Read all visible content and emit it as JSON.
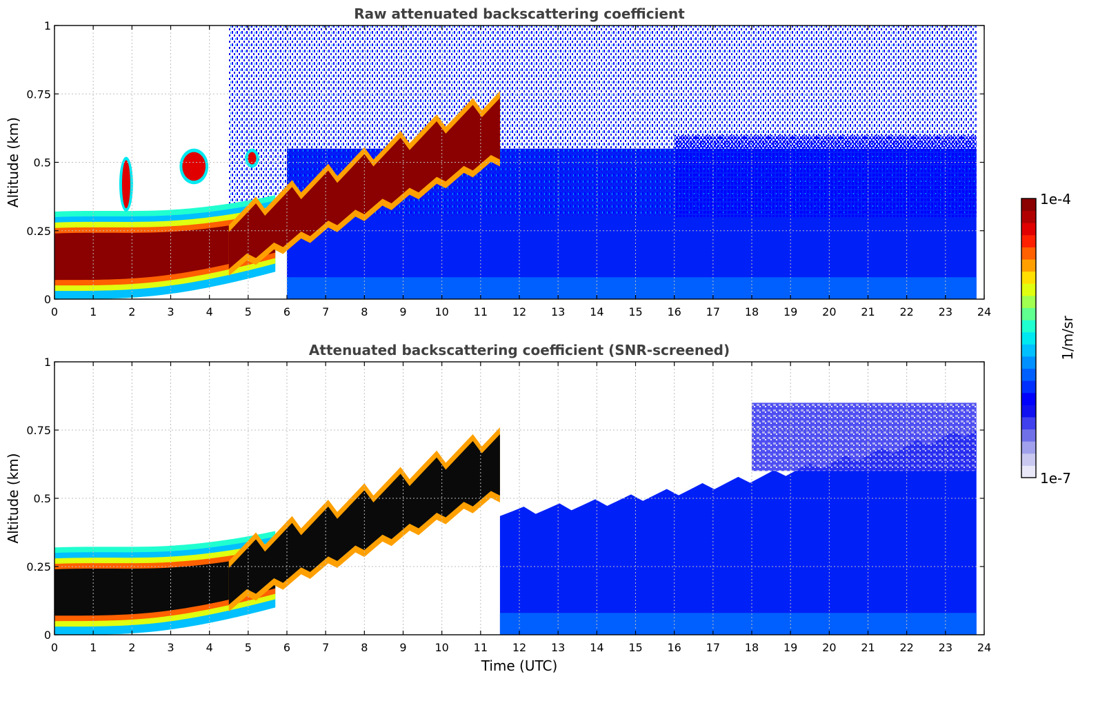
{
  "colorbar": {
    "max_label": "1e-4",
    "min_label": "1e-7",
    "unit_label": "1/m/sr",
    "colors": [
      "#e8e8f8",
      "#c8c8f0",
      "#a0a0ec",
      "#7070e8",
      "#4040ee",
      "#1010f0",
      "#0000ff",
      "#0030ff",
      "#0060ff",
      "#0090ff",
      "#00c0ff",
      "#00e8f0",
      "#20ffd0",
      "#60ff90",
      "#a0ff50",
      "#e0ff10",
      "#ffe000",
      "#ffa000",
      "#ff6000",
      "#ff2000",
      "#e00000",
      "#b00000",
      "#8b0000"
    ]
  },
  "chart_data": [
    {
      "type": "heatmap",
      "title": "Raw attenuated backscattering coefficient",
      "xlabel": "",
      "ylabel": "Altitude (km)",
      "xlim": [
        0,
        24
      ],
      "ylim": [
        0,
        1
      ],
      "x_ticks": [
        "0",
        "1",
        "2",
        "3",
        "4",
        "5",
        "6",
        "7",
        "8",
        "9",
        "10",
        "11",
        "12",
        "13",
        "14",
        "15",
        "16",
        "17",
        "18",
        "19",
        "20",
        "21",
        "22",
        "23",
        "24"
      ],
      "y_ticks": [
        "0",
        "0.25",
        "0.5",
        "0.75",
        "1"
      ],
      "grid": true,
      "color_scale": "log",
      "color_range": [
        1e-07,
        0.0001
      ],
      "data_end_x": 23.8,
      "features": {
        "boundary_layer_aerosol": {
          "x": [
            0,
            4.5
          ],
          "altitude": [
            0.05,
            0.28
          ],
          "level": "1e-4"
        },
        "rising_layer": {
          "x": [
            4.5,
            11.5
          ],
          "altitude_start": [
            0.1,
            0.3
          ],
          "altitude_end": [
            0.5,
            0.75
          ],
          "level": "1e-4"
        },
        "clouds": [
          {
            "x": 1.85,
            "altitude": [
              0.32,
              0.52
            ]
          },
          {
            "x": [
              3.3,
              3.9
            ],
            "altitude": [
              0.42,
              0.55
            ]
          },
          {
            "x": 5.1,
            "altitude": [
              0.48,
              0.55
            ]
          }
        ],
        "noise_region": {
          "x": [
            4.5,
            23.8
          ],
          "altitude": [
            0.3,
            1
          ]
        },
        "background_layer": {
          "x": [
            6,
            23.8
          ],
          "altitude": [
            0,
            0.55
          ]
        }
      }
    },
    {
      "type": "heatmap",
      "title": "Attenuated backscattering coefficient (SNR-screened)",
      "xlabel": "Time (UTC)",
      "ylabel": "Altitude (km)",
      "xlim": [
        0,
        24
      ],
      "ylim": [
        0,
        1
      ],
      "x_ticks": [
        "0",
        "1",
        "2",
        "3",
        "4",
        "5",
        "6",
        "7",
        "8",
        "9",
        "10",
        "11",
        "12",
        "13",
        "14",
        "15",
        "16",
        "17",
        "18",
        "19",
        "20",
        "21",
        "22",
        "23",
        "24"
      ],
      "y_ticks": [
        "0",
        "0.25",
        "0.5",
        "0.75",
        "1"
      ],
      "grid": true,
      "color_scale": "log",
      "color_range": [
        1e-07,
        0.0001
      ],
      "data_end_x": 23.8,
      "features": {
        "boundary_layer_aerosol": {
          "x": [
            0,
            4.5
          ],
          "altitude": [
            0.05,
            0.28
          ],
          "level": "above range"
        },
        "rising_layer": {
          "x": [
            4.5,
            11.5
          ],
          "altitude_start": [
            0.1,
            0.3
          ],
          "altitude_end": [
            0.5,
            0.75
          ],
          "level": "above range"
        },
        "screened_top": {
          "x": [
            11.5,
            23.8
          ],
          "altitude_start": 0.45,
          "altitude_end": 0.75
        },
        "faint_region": {
          "x": [
            17,
            23.8
          ],
          "altitude": [
            0.6,
            0.85
          ]
        }
      }
    }
  ]
}
